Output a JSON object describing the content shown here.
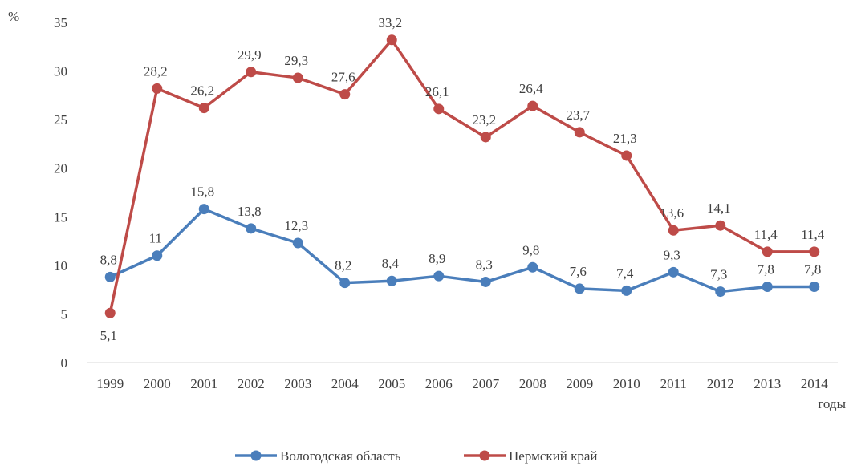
{
  "chart_data": {
    "type": "line",
    "ylabel": "%",
    "xlabel": "годы",
    "categories": [
      "1999",
      "2000",
      "2001",
      "2002",
      "2003",
      "2004",
      "2005",
      "2006",
      "2007",
      "2008",
      "2009",
      "2010",
      "2011",
      "2012",
      "2013",
      "2014"
    ],
    "ylim": [
      0,
      35
    ],
    "yticks": [
      "0",
      "5",
      "10",
      "15",
      "20",
      "25",
      "30",
      "35"
    ],
    "grid": false,
    "legend_position": "bottom",
    "series": [
      {
        "name": "Вологодская область",
        "color": "#4a7ebb",
        "values": [
          8.8,
          11,
          15.8,
          13.8,
          12.3,
          8.2,
          8.4,
          8.9,
          8.3,
          9.8,
          7.6,
          7.4,
          9.3,
          7.3,
          7.8,
          7.8
        ],
        "labels": [
          "8,8",
          "11",
          "15,8",
          "13,8",
          "12,3",
          "8,2",
          "8,4",
          "8,9",
          "8,3",
          "9,8",
          "7,6",
          "7,4",
          "9,3",
          "7,3",
          "7,8",
          "7,8"
        ]
      },
      {
        "name": "Пермский край",
        "color": "#be4b48",
        "values": [
          5.1,
          28.2,
          26.2,
          29.9,
          29.3,
          27.6,
          33.2,
          26.1,
          23.2,
          26.4,
          23.7,
          21.3,
          13.6,
          14.1,
          11.4,
          11.4
        ],
        "labels": [
          "5,1",
          "28,2",
          "26,2",
          "29,9",
          "29,3",
          "27,6",
          "33,2",
          "26,1",
          "23,2",
          "26,4",
          "23,7",
          "21,3",
          "13,6",
          "14,1",
          "11,4",
          "11,4"
        ]
      }
    ]
  }
}
